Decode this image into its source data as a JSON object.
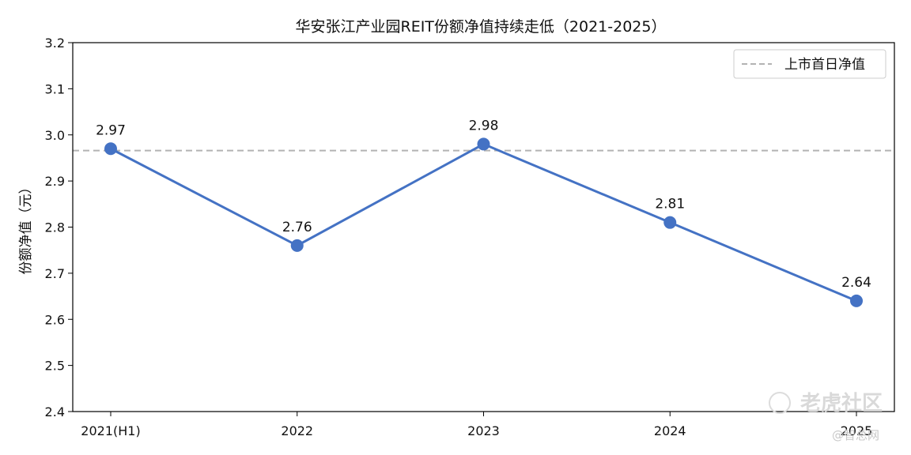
{
  "chart_data": {
    "type": "line",
    "title": "华安张江产业园REIT份额净值持续走低（2021-2025）",
    "xlabel": "",
    "ylabel": "份额净值（元）",
    "categories": [
      "2021(H1)",
      "2022",
      "2023",
      "2024",
      "2025"
    ],
    "series": [
      {
        "values": [
          2.97,
          2.76,
          2.98,
          2.81,
          2.64
        ],
        "color": "#4472c4"
      }
    ],
    "data_labels": [
      "2.97",
      "2.76",
      "2.98",
      "2.81",
      "2.64"
    ],
    "reference_line": {
      "name": "上市首日净值",
      "value": 2.966,
      "color": "#b3b3b3",
      "style": "dashed"
    },
    "ylim": [
      2.4,
      3.2
    ],
    "yticks": [
      "2.4",
      "2.5",
      "2.6",
      "2.7",
      "2.8",
      "2.9",
      "3.0",
      "3.1",
      "3.2"
    ],
    "grid": false,
    "legend_position": "top-right"
  },
  "watermark": {
    "text": "老虎社区",
    "subtext": "@智总网"
  }
}
